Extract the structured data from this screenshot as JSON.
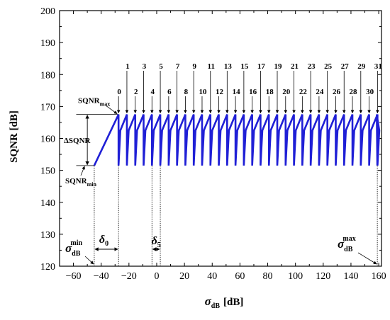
{
  "chart_data": {
    "type": "line",
    "xlabel": "σ",
    "xlabel_sub": "dB",
    "xlabel_unit": "[dB]",
    "ylabel": "SQNR [dB]",
    "xlim": [
      -70,
      162
    ],
    "ylim": [
      120,
      200
    ],
    "x_ticks": [
      -60,
      -40,
      -20,
      0,
      20,
      40,
      60,
      80,
      100,
      120,
      140,
      160
    ],
    "x_tick_labels": [
      "-60",
      "-40",
      "-20",
      "0",
      "20",
      "40",
      "60",
      "80",
      "100",
      "120",
      "140",
      "160"
    ],
    "y_ticks": [
      120,
      130,
      140,
      150,
      160,
      170,
      180,
      190,
      200
    ],
    "y_tick_labels": [
      "120",
      "130",
      "140",
      "150",
      "160",
      "170",
      "180",
      "190",
      "200"
    ],
    "series": [
      {
        "color": "#1f1fd6",
        "sigma_min": -45,
        "first_peak_x": -27.5,
        "period": 6.02,
        "segments": 32,
        "sqnr_max": 167.5,
        "sqnr_min": 151.5,
        "sigma_max": 159
      }
    ],
    "segment_labels": [
      "0",
      "1",
      "2",
      "3",
      "4",
      "5",
      "6",
      "7",
      "8",
      "9",
      "10",
      "11",
      "12",
      "13",
      "14",
      "15",
      "16",
      "17",
      "18",
      "19",
      "20",
      "21",
      "22",
      "23",
      "24",
      "25",
      "26",
      "27",
      "28",
      "29",
      "30",
      "31"
    ],
    "annotations": {
      "sqnr_max": "SQNR",
      "sqnr_max_sub": "max",
      "sqnr_min": "SQNR",
      "sqnr_min_sub": "min",
      "delta_sqnr": "ΔSQNR",
      "sigma_min_base": "σ",
      "sigma_min_sub": "dB",
      "sigma_min_sup": "min",
      "sigma_max_base": "σ",
      "sigma_max_sub": "dB",
      "sigma_max_sup": "max",
      "delta0_base": "δ",
      "delta0_sub": "0",
      "delta5_base": "δ",
      "delta5_sub": "5"
    },
    "grid": false,
    "legend": "none"
  }
}
